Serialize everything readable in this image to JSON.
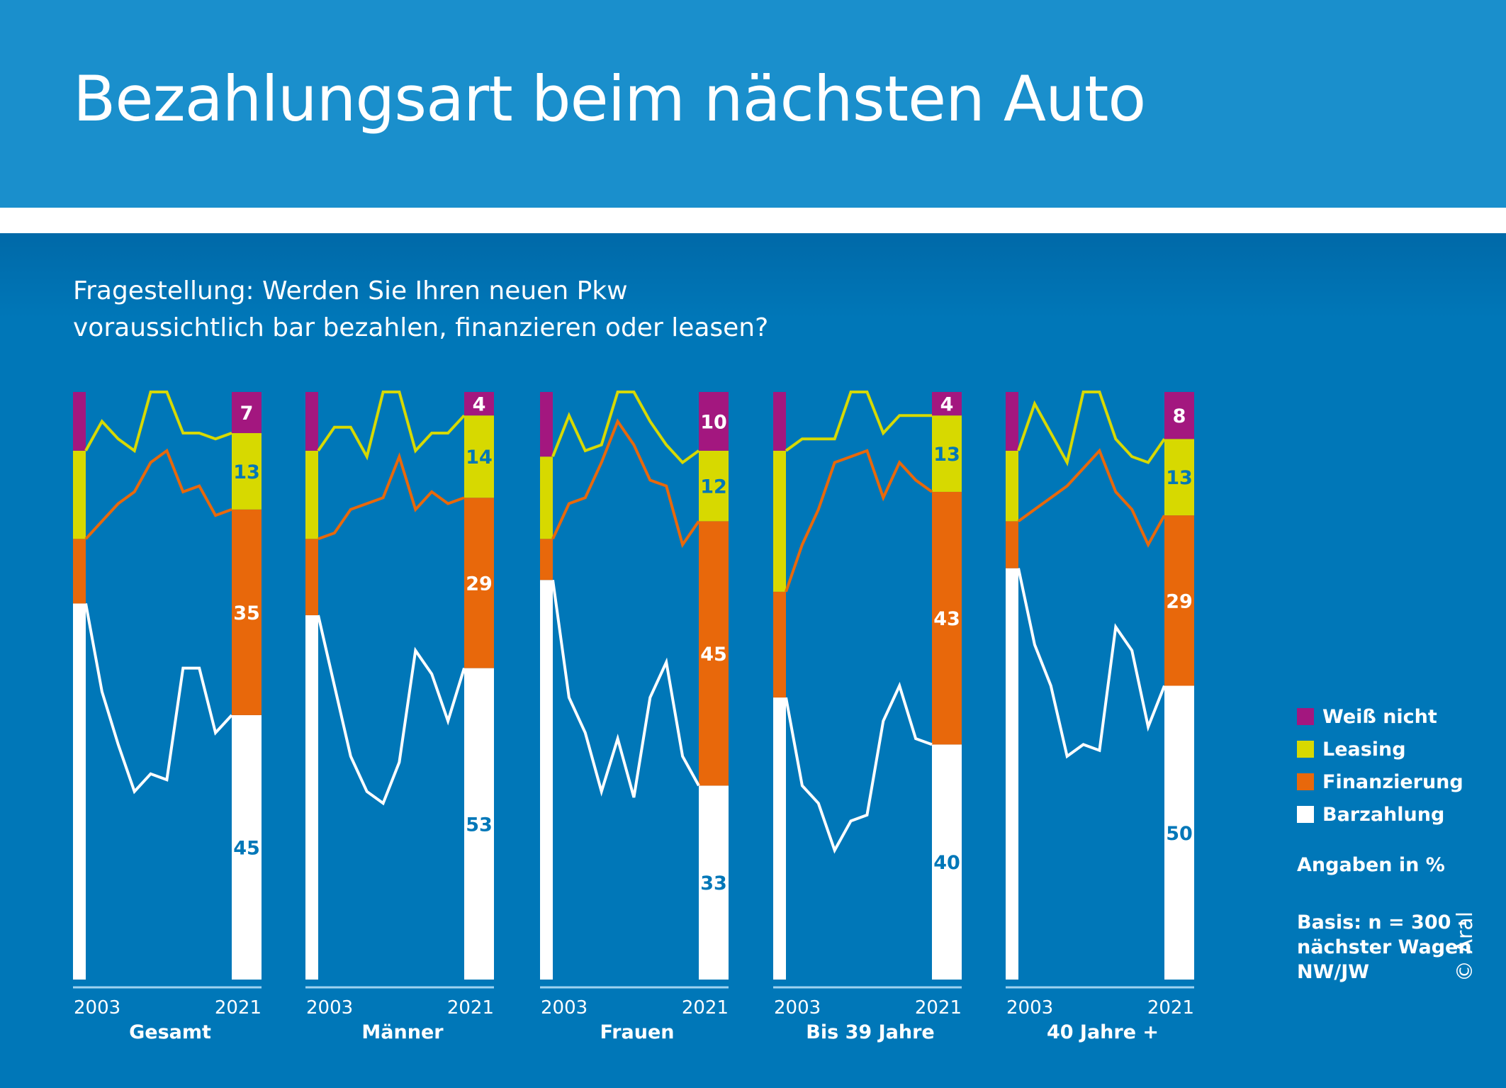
{
  "header": {
    "title": "Bezahlungsart beim nächsten Auto",
    "question_line1": "Fragestellung: Werden Sie Ihren neuen Pkw",
    "question_line2": "voraussichtlich bar bezahlen, finanzieren oder leasen?"
  },
  "colors": {
    "header_bg": "#1a8fcc",
    "main_bg": "#0077b8",
    "weiss_nicht": "#a3177f",
    "leasing": "#d7d900",
    "finanzierung": "#e8680b",
    "barzahlung": "#ffffff"
  },
  "legend": {
    "items": [
      {
        "label": "Weiß nicht",
        "color": "#a3177f"
      },
      {
        "label": "Leasing",
        "color": "#d7d900"
      },
      {
        "label": "Finanzierung",
        "color": "#e8680b"
      },
      {
        "label": "Barzahlung",
        "color": "#ffffff"
      }
    ],
    "unit_note": "Angaben in %",
    "basis_line1": "Basis: n = 300 –",
    "basis_line2": "nächster Wagen",
    "basis_line3": "NW/JW",
    "copyright": "© Aral"
  },
  "chart_data": {
    "type": "bar",
    "title": "Bezahlungsart beim nächsten Auto",
    "ylabel": "Angaben in %",
    "ylim": [
      0,
      100
    ],
    "x": [
      2003,
      2005,
      2007,
      2009,
      2011,
      2013,
      2015,
      2017,
      2019,
      2021
    ],
    "x_tick_labels": [
      "2003",
      "2021"
    ],
    "stack_order": [
      "Barzahlung",
      "Finanzierung",
      "Leasing",
      "Weiß nicht"
    ],
    "groups": [
      {
        "name": "Gesamt",
        "Barzahlung": [
          64,
          49,
          40,
          32,
          35,
          34,
          53,
          53,
          42,
          45
        ],
        "Finanzierung": [
          11,
          29,
          41,
          51,
          53,
          56,
          30,
          31,
          37,
          35
        ],
        "Leasing": [
          15,
          17,
          11,
          7,
          12,
          10,
          10,
          9,
          13,
          13
        ],
        "Weiß nicht": [
          10,
          5,
          8,
          10,
          0,
          0,
          7,
          7,
          8,
          7
        ],
        "labels_2021": [
          "45",
          "35",
          "13",
          "7"
        ]
      },
      {
        "name": "Männer",
        "Barzahlung": [
          62,
          50,
          38,
          32,
          30,
          37,
          56,
          52,
          44,
          53
        ],
        "Finanzierung": [
          13,
          26,
          42,
          49,
          52,
          52,
          24,
          31,
          37,
          29
        ],
        "Leasing": [
          15,
          18,
          14,
          8,
          18,
          11,
          10,
          10,
          12,
          14
        ],
        "Weiß nicht": [
          10,
          6,
          6,
          11,
          0,
          0,
          10,
          7,
          7,
          4
        ],
        "labels_2021": [
          "53",
          "29",
          "14",
          "4"
        ]
      },
      {
        "name": "Frauen",
        "Barzahlung": [
          68,
          48,
          42,
          32,
          41,
          31,
          48,
          54,
          38,
          33
        ],
        "Finanzierung": [
          7,
          33,
          40,
          56,
          54,
          60,
          37,
          30,
          36,
          45
        ],
        "Leasing": [
          14,
          15,
          8,
          3,
          5,
          9,
          10,
          7,
          14,
          12
        ],
        "Weiß nicht": [
          11,
          4,
          10,
          9,
          0,
          0,
          5,
          9,
          12,
          10
        ],
        "labels_2021": [
          "33",
          "45",
          "12",
          "10"
        ]
      },
      {
        "name": "Bis 39 Jahre",
        "Barzahlung": [
          48,
          33,
          30,
          22,
          27,
          28,
          44,
          50,
          41,
          40
        ],
        "Finanzierung": [
          18,
          41,
          50,
          66,
          62,
          62,
          38,
          38,
          44,
          43
        ],
        "Leasing": [
          24,
          18,
          12,
          4,
          11,
          10,
          11,
          8,
          11,
          13
        ],
        "Weiß nicht": [
          10,
          8,
          8,
          8,
          0,
          0,
          7,
          4,
          4,
          4
        ],
        "labels_2021": [
          "40",
          "43",
          "13",
          "4"
        ]
      },
      {
        "name": "40 Jahre +",
        "Barzahlung": [
          70,
          57,
          50,
          38,
          40,
          39,
          60,
          56,
          43,
          50
        ],
        "Finanzierung": [
          8,
          23,
          32,
          46,
          47,
          51,
          23,
          24,
          31,
          29
        ],
        "Leasing": [
          12,
          18,
          11,
          4,
          13,
          10,
          9,
          9,
          14,
          13
        ],
        "Weiß nicht": [
          10,
          2,
          7,
          12,
          0,
          0,
          8,
          11,
          12,
          8
        ],
        "labels_2021": [
          "50",
          "29",
          "13",
          "8"
        ]
      }
    ]
  }
}
